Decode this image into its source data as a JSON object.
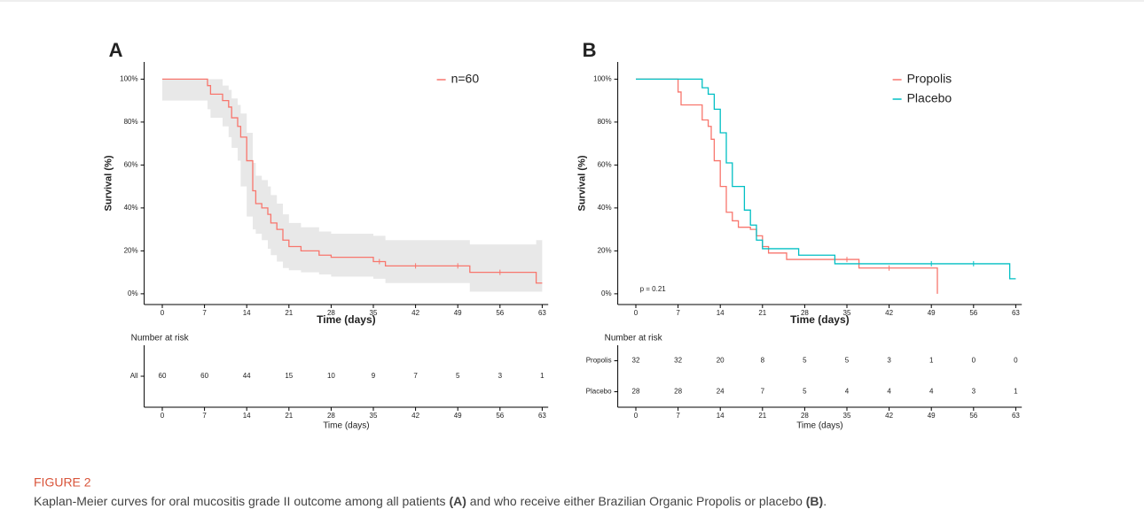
{
  "chart_data": [
    {
      "type": "km",
      "panel_label": "A",
      "xlabel": "Time (days)",
      "ylabel": "Survival (%)",
      "xlim": [
        -3,
        64
      ],
      "ylim": [
        -5,
        108
      ],
      "xticks": [
        0,
        7,
        14,
        21,
        28,
        35,
        42,
        49,
        56,
        63
      ],
      "yticks": [
        {
          "value": 0,
          "label": "0%"
        },
        {
          "value": 20,
          "label": "20%"
        },
        {
          "value": 40,
          "label": "40%"
        },
        {
          "value": 60,
          "label": "60%"
        },
        {
          "value": 80,
          "label": "80%"
        },
        {
          "value": 100,
          "label": "100%"
        }
      ],
      "series": [
        {
          "name": "n=60",
          "color": "#f8766d",
          "x": [
            0,
            7.5,
            8,
            10,
            11,
            11.5,
            12.5,
            13,
            14,
            15,
            15.5,
            16.5,
            17.5,
            18,
            19,
            20,
            21,
            23,
            26,
            28,
            35,
            37,
            51,
            62,
            63
          ],
          "values": [
            100,
            97,
            93,
            90,
            87,
            82,
            78,
            73,
            62,
            48,
            42,
            40,
            37,
            33,
            30,
            25,
            22,
            20,
            18,
            17,
            15,
            13,
            10,
            5,
            5
          ],
          "lower": [
            100,
            90,
            86,
            82,
            78,
            73,
            68,
            62,
            50,
            36,
            30,
            28,
            25,
            21,
            18,
            15,
            12,
            11,
            10,
            9,
            8,
            7,
            5,
            1,
            1
          ],
          "upper": [
            100,
            100,
            100,
            97,
            95,
            91,
            88,
            84,
            75,
            61,
            55,
            53,
            50,
            46,
            42,
            37,
            33,
            31,
            29,
            28,
            27,
            25,
            23,
            25,
            25
          ],
          "censored_x": [
            36,
            42,
            49,
            56
          ],
          "censored_values": [
            15,
            13,
            13,
            10
          ]
        }
      ],
      "risk_table": {
        "title": "Number at risk",
        "xlabel": "Time (days)",
        "rows": [
          {
            "name": "All",
            "values": [
              60,
              60,
              44,
              15,
              10,
              9,
              7,
              5,
              3,
              1
            ]
          }
        ]
      }
    },
    {
      "type": "km",
      "panel_label": "B",
      "xlabel": "Time (days)",
      "ylabel": "Survival (%)",
      "xlim": [
        -3,
        64
      ],
      "ylim": [
        -5,
        108
      ],
      "annotation": "p = 0.21",
      "xticks": [
        0,
        7,
        14,
        21,
        28,
        35,
        42,
        49,
        56,
        63
      ],
      "yticks": [
        {
          "value": 0,
          "label": "0%"
        },
        {
          "value": 20,
          "label": "20%"
        },
        {
          "value": 40,
          "label": "40%"
        },
        {
          "value": 60,
          "label": "60%"
        },
        {
          "value": 80,
          "label": "80%"
        },
        {
          "value": 100,
          "label": "100%"
        }
      ],
      "series": [
        {
          "name": "Propolis",
          "color": "#f8766d",
          "x": [
            0,
            7,
            7.5,
            11,
            12,
            12.5,
            13,
            14,
            15,
            16,
            17,
            19,
            20,
            21,
            22,
            25,
            37,
            50
          ],
          "values": [
            100,
            94,
            88,
            81,
            78,
            72,
            62,
            50,
            38,
            34,
            31,
            30,
            27,
            22,
            19,
            16,
            12,
            0
          ],
          "censored_x": [
            35,
            42
          ],
          "censored_values": [
            16,
            12
          ]
        },
        {
          "name": "Placebo",
          "color": "#00bfc4",
          "x": [
            0,
            11,
            12,
            13,
            14,
            15,
            16,
            18,
            19,
            20,
            21,
            27,
            33,
            62,
            63
          ],
          "values": [
            100,
            96,
            93,
            86,
            75,
            61,
            50,
            39,
            32,
            25,
            21,
            18,
            14,
            7,
            7
          ],
          "censored_x": [
            49,
            56
          ],
          "censored_values": [
            14,
            14
          ]
        }
      ],
      "risk_table": {
        "title": "Number at risk",
        "xlabel": "Time (days)",
        "rows": [
          {
            "name": "Propolis",
            "values": [
              32,
              32,
              20,
              8,
              5,
              5,
              3,
              1,
              0,
              0
            ]
          },
          {
            "name": "Placebo",
            "values": [
              28,
              28,
              24,
              7,
              5,
              4,
              4,
              4,
              3,
              1
            ]
          }
        ]
      }
    }
  ],
  "figure_label": "FIGURE 2",
  "caption": [
    "Kaplan-Meier curves for oral mucositis grade II outcome among all patients ",
    "(A)",
    " and who receive either Brazilian Organic Propolis or placebo ",
    "(B)",
    "."
  ]
}
